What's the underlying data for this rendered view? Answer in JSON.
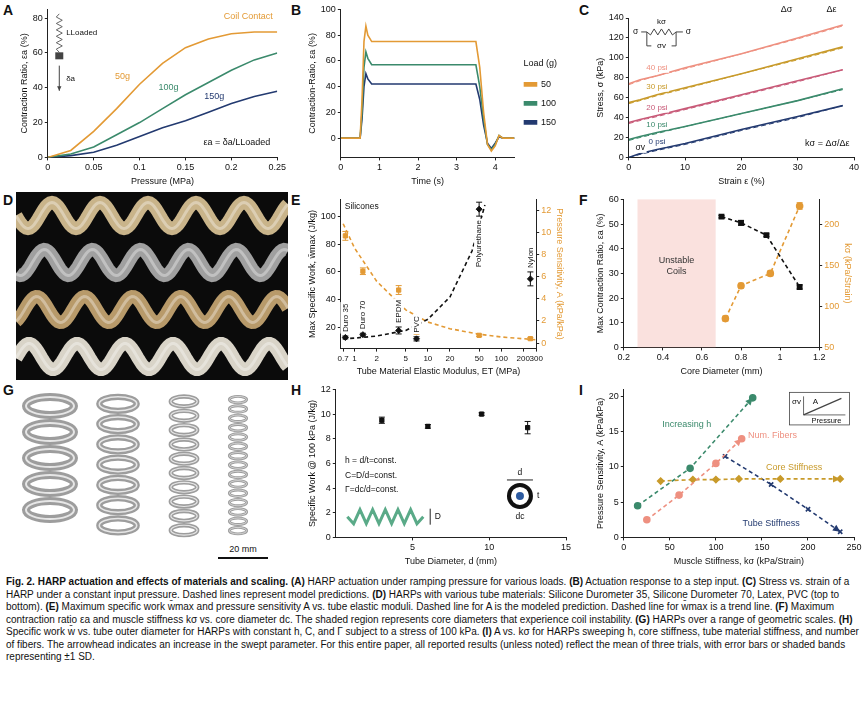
{
  "chart_data": [
    {
      "letter": "A",
      "type": "line",
      "x_label": "Pressure (MPa)",
      "y_label": "Contraction Ratio, εa (%)",
      "xlim": [
        0,
        0.25
      ],
      "xticks": [
        0,
        0.05,
        0.1,
        0.15,
        0.2,
        0.25
      ],
      "ylim": [
        0,
        85
      ],
      "yticks": [
        0,
        20,
        40,
        60,
        80
      ],
      "grid": false,
      "series": [
        {
          "name": "50g",
          "color": "#e39a35",
          "line_style": "solid",
          "marker": "none",
          "x": [
            0,
            0.025,
            0.05,
            0.075,
            0.1,
            0.125,
            0.15,
            0.175,
            0.2,
            0.225,
            0.25
          ],
          "values": [
            0,
            4,
            15,
            28,
            42,
            54,
            63,
            68,
            71,
            72,
            72
          ]
        },
        {
          "name": "100g",
          "color": "#3b8a6c",
          "line_style": "solid",
          "marker": "none",
          "x": [
            0,
            0.025,
            0.05,
            0.075,
            0.1,
            0.125,
            0.15,
            0.175,
            0.2,
            0.225,
            0.25
          ],
          "values": [
            0,
            2,
            6,
            13,
            20,
            28,
            36,
            43,
            50,
            56,
            60
          ]
        },
        {
          "name": "150g",
          "color": "#233a70",
          "line_style": "solid",
          "marker": "none",
          "x": [
            0,
            0.025,
            0.05,
            0.075,
            0.1,
            0.125,
            0.15,
            0.175,
            0.2,
            0.225,
            0.25
          ],
          "values": [
            0,
            1,
            3,
            7,
            12,
            17,
            21,
            26,
            31,
            35,
            38
          ]
        }
      ],
      "annotations": [
        "Coil Contact",
        "εa = δa/LLoaded"
      ],
      "inset_labels": [
        "LLoaded",
        "δa"
      ]
    },
    {
      "letter": "B",
      "type": "line",
      "x_label": "Time (s)",
      "y_label": "Contraction-Ratio, εa (%)",
      "xlim": [
        0,
        4.5
      ],
      "xticks": [
        0,
        1,
        2,
        3,
        4
      ],
      "ylim": [
        -15,
        100
      ],
      "yticks": [
        0,
        20,
        40,
        60,
        80,
        100
      ],
      "grid": false,
      "legend": "right",
      "legend_title": "Load (g)",
      "series": [
        {
          "name": "50",
          "color": "#e39a35",
          "line_style": "solid",
          "marker": "none",
          "x": [
            0,
            0.5,
            0.55,
            0.6,
            0.65,
            0.7,
            0.8,
            1,
            1.5,
            2,
            2.5,
            3,
            3.5,
            3.6,
            3.7,
            3.8,
            3.9,
            4,
            4.1,
            4.2,
            4.5
          ],
          "values": [
            0,
            0,
            30,
            75,
            87,
            80,
            75,
            75,
            75,
            75,
            75,
            75,
            75,
            55,
            20,
            -5,
            -10,
            -6,
            2,
            0,
            0
          ]
        },
        {
          "name": "100",
          "color": "#3b8a6c",
          "line_style": "solid",
          "marker": "none",
          "x": [
            0,
            0.5,
            0.55,
            0.6,
            0.65,
            0.7,
            0.8,
            1,
            1.5,
            2,
            2.5,
            3,
            3.5,
            3.6,
            3.7,
            3.8,
            3.9,
            4,
            4.1,
            4.2,
            4.5
          ],
          "values": [
            0,
            0,
            20,
            55,
            67,
            62,
            57,
            57,
            57,
            57,
            57,
            57,
            57,
            40,
            15,
            -5,
            -9,
            -5,
            2,
            0,
            0
          ]
        },
        {
          "name": "150",
          "color": "#233a70",
          "line_style": "solid",
          "marker": "none",
          "x": [
            0,
            0.5,
            0.55,
            0.6,
            0.65,
            0.7,
            0.8,
            1,
            1.5,
            2,
            2.5,
            3,
            3.5,
            3.6,
            3.7,
            3.8,
            3.9,
            4,
            4.1,
            4.2,
            4.5
          ],
          "values": [
            0,
            0,
            15,
            40,
            50,
            46,
            42,
            42,
            42,
            42,
            42,
            42,
            42,
            30,
            10,
            -4,
            -8,
            -4,
            1,
            0,
            0
          ]
        }
      ]
    },
    {
      "letter": "C",
      "type": "line",
      "x_label": "Strain ε (%)",
      "y_label": "Stress, σ (kPa)",
      "xlim": [
        0,
        40
      ],
      "xticks": [
        0,
        10,
        20,
        30,
        40
      ],
      "ylim": [
        0,
        140
      ],
      "yticks": [
        0,
        20,
        40,
        60,
        80,
        100,
        120,
        140
      ],
      "grid": false,
      "series": [
        {
          "name": "0 psi",
          "color": "#233a70",
          "line_style": "solid",
          "marker": "none",
          "x": [
            0,
            2,
            5,
            10,
            20,
            30,
            38
          ],
          "values": [
            0,
            4,
            8,
            14,
            28,
            41,
            52
          ],
          "model": [
            0,
            3,
            7,
            13,
            27,
            40,
            52
          ]
        },
        {
          "name": "10 psi",
          "color": "#3b8a6c",
          "line_style": "solid",
          "marker": "none",
          "x": [
            0,
            2,
            5,
            10,
            20,
            30,
            38
          ],
          "values": [
            18,
            21,
            25,
            31,
            44,
            57,
            69
          ],
          "model": [
            17,
            20,
            24,
            31,
            44,
            57,
            68
          ]
        },
        {
          "name": "20 psi",
          "color": "#c85a78",
          "line_style": "solid",
          "marker": "none",
          "x": [
            0,
            2,
            5,
            10,
            20,
            30,
            38
          ],
          "values": [
            35,
            38,
            42,
            49,
            63,
            77,
            88
          ],
          "model": [
            34,
            37,
            41,
            48,
            62,
            76,
            88
          ]
        },
        {
          "name": "30 psi",
          "color": "#c89a2a",
          "line_style": "solid",
          "marker": "none",
          "x": [
            0,
            2,
            5,
            10,
            20,
            30,
            38
          ],
          "values": [
            55,
            58,
            63,
            70,
            84,
            99,
            111
          ],
          "model": [
            54,
            57,
            62,
            69,
            84,
            98,
            110
          ]
        },
        {
          "name": "40 psi",
          "color": "#ee9080",
          "line_style": "solid",
          "marker": "none",
          "x": [
            0,
            2,
            5,
            10,
            20,
            30,
            38
          ],
          "values": [
            74,
            78,
            82,
            90,
            104,
            120,
            133
          ],
          "model": [
            73,
            77,
            82,
            89,
            104,
            119,
            132
          ]
        }
      ],
      "annotations": [
        "σv",
        "Δσ",
        "Δε",
        "kσ = Δσ/Δε"
      ],
      "inset_labels": [
        "σ",
        "kσ",
        "σv",
        "σ"
      ]
    },
    {
      "letter": "E",
      "type": "scatter",
      "log": "x",
      "x_label": "Tube Material Elastic Modulus, ET (MPa)",
      "y_label": "Max Specific Work, w̄max (J/kg)",
      "y2_label": "Pressure Sensitivity, A (kPa/kPa)",
      "xlim": [
        0.65,
        300
      ],
      "xticks": [
        0.7,
        1,
        2,
        5,
        10,
        20,
        50,
        100,
        200,
        300
      ],
      "ylim": [
        5,
        112
      ],
      "yticks": [
        20,
        40,
        60,
        80,
        100
      ],
      "y2lim": [
        -0.5,
        13
      ],
      "y2ticks": [
        0,
        2,
        4,
        6,
        8,
        10,
        12
      ],
      "grid": false,
      "series": [
        {
          "color": "#111111",
          "marker": "diamond",
          "line_style": "none",
          "x": [
            0.75,
            1.3,
            4,
            7,
            50,
            250
          ],
          "values": [
            13,
            15,
            18,
            12,
            105,
            55
          ],
          "error": [
            1,
            1,
            2.5,
            1.5,
            5,
            5
          ],
          "point_labels": [
            "Duro 35",
            "Duro 70",
            "EPDM",
            "PVC",
            "Polyurethane",
            "Nylon"
          ]
        },
        {
          "color": "#111111",
          "marker": "none",
          "line_style": "dashed",
          "x": [
            0.7,
            1,
            2,
            5,
            10,
            20,
            40,
            60
          ],
          "values": [
            12,
            12.5,
            14,
            18,
            26,
            42,
            75,
            108
          ]
        },
        {
          "color": "#e39a35",
          "marker": "square",
          "line_style": "none",
          "axis": "y2",
          "x": [
            0.75,
            1.3,
            4,
            7,
            50,
            250
          ],
          "values": [
            9.7,
            6.5,
            4.8,
            1.0,
            0.7,
            0.4
          ],
          "error": [
            0.4,
            0.3,
            0.4,
            0.2,
            0.1,
            0.1
          ]
        },
        {
          "color": "#e39a35",
          "marker": "none",
          "line_style": "dashed",
          "axis": "y2",
          "x": [
            0.7,
            1,
            2,
            5,
            10,
            20,
            50,
            100,
            300
          ],
          "values": [
            10.8,
            8.6,
            5.6,
            3,
            1.9,
            1.3,
            0.8,
            0.55,
            0.3
          ]
        }
      ],
      "annotations": [
        "Silicones"
      ]
    },
    {
      "letter": "F",
      "type": "line",
      "x_label": "Core Diameter (mm)",
      "y_label": "Max Contraction Ratio, εa (%)",
      "y2_label": "kσ (kPa/Strain)",
      "xlim": [
        0.2,
        1.2
      ],
      "xticks": [
        0.2,
        0.4,
        0.6,
        0.8,
        1,
        1.2
      ],
      "ylim": [
        0,
        60
      ],
      "yticks": [
        0,
        10,
        20,
        30,
        40,
        50,
        60
      ],
      "y2lim": [
        50,
        230
      ],
      "y2ticks": [
        50,
        100,
        150,
        200
      ],
      "grid": false,
      "shaded_region": {
        "range": [
          0.27,
          0.67
        ],
        "label": "Unstable Coils"
      },
      "series": [
        {
          "color": "#111111",
          "marker": "square",
          "line_style": "dashed",
          "x": [
            0.7,
            0.8,
            0.93,
            1.1
          ],
          "values": [
            53,
            50.5,
            45.5,
            24.5
          ],
          "error": [
            0.5,
            1,
            0.5,
            0.8
          ]
        },
        {
          "color": "#e39a35",
          "marker": "circle",
          "line_style": "dashed",
          "axis": "y2",
          "x": [
            0.72,
            0.8,
            0.95,
            1.1
          ],
          "values": [
            85,
            125,
            140,
            222
          ],
          "error": [
            3,
            3,
            3,
            4
          ]
        }
      ]
    },
    {
      "letter": "H",
      "type": "scatter",
      "x_label": "Tube Diameter, d (mm)",
      "y_label": "Specific Work @ 100 kPa (J/kg)",
      "xlim": [
        0,
        15
      ],
      "xticks": [
        5,
        10,
        15
      ],
      "ylim": [
        0,
        12
      ],
      "yticks": [
        0,
        2,
        4,
        6,
        8,
        10,
        12
      ],
      "grid": false,
      "series": [
        {
          "color": "#111111",
          "marker": "square",
          "line_style": "none",
          "x": [
            3,
            6,
            9.5,
            12.5
          ],
          "values": [
            9.5,
            9.0,
            10.0,
            8.9
          ],
          "error": [
            0.25,
            0.15,
            0.1,
            0.5
          ]
        }
      ],
      "annotations": [
        "h = d/t=const.",
        "C=D/d=const.",
        "Γ=dc/d=const."
      ],
      "inset_labels": [
        "D",
        "d",
        "t",
        "dc"
      ]
    },
    {
      "letter": "I",
      "type": "line",
      "x_label": "Muscle Stiffness, kσ (kPa/Strain)",
      "y_label": "Pressure Sensitivity, A (kPa/kPa)",
      "xlim": [
        0,
        250
      ],
      "xticks": [
        0,
        50,
        100,
        150,
        200,
        250
      ],
      "ylim": [
        0,
        21
      ],
      "yticks": [
        0,
        5,
        10,
        15,
        20
      ],
      "grid": false,
      "series": [
        {
          "name": "Increasing h",
          "color": "#3b8a6c",
          "marker": "circle",
          "line_style": "dashed",
          "x": [
            15,
            72,
            140
          ],
          "values": [
            4.5,
            9.8,
            19.8
          ]
        },
        {
          "name": "Num. Fibers",
          "color": "#ee9080",
          "marker": "circle",
          "line_style": "dashed",
          "x": [
            25,
            60,
            100,
            128
          ],
          "values": [
            2.5,
            6,
            10.5,
            14
          ]
        },
        {
          "name": "Core Stiffness",
          "color": "#c89a2a",
          "marker": "diamond",
          "line_style": "dashed",
          "x": [
            40,
            75,
            100,
            125,
            170,
            235
          ],
          "values": [
            8,
            8.2,
            8.2,
            8.3,
            8.3,
            8.3
          ]
        },
        {
          "name": "Tube Stiffness",
          "color": "#233a70",
          "marker": "cross",
          "line_style": "dashed",
          "x": [
            110,
            160,
            200,
            235
          ],
          "values": [
            11.5,
            7.5,
            4,
            0.8
          ]
        }
      ],
      "inset_labels": [
        "σv",
        "A",
        "Pressure"
      ]
    }
  ],
  "photos": [
    {
      "letter": "D"
    },
    {
      "letter": "G",
      "scale_bar": "20 mm"
    }
  ],
  "caption": {
    "label": "Fig. 2.",
    "title": "HARP actuation and effects of materials and scaling.",
    "text": "(A) HARP actuation under ramping pressure for various loads. (B) Actuation response to a step input. (C) Stress vs. strain of a HARP under a constant input pressure. Dashed lines represent model predictions. (D) HARPs with various tube materials: Silicone Durometer 35, Silicone Durometer 70, Latex, PVC (top to bottom). (E) Maximum specific work w̄max and pressure sensitivity A vs. tube elastic moduli. Dashed line for A is the modeled prediction. Dashed line for w̄max is a trend line. (F) Maximum contraction ratio εa and muscle stiffness kσ vs. core diameter dc. The shaded region represents core diameters that experience coil instability. (G) HARPs over a range of geometric scales. (H) Specific work w̄ vs. tube outer diameter for HARPs with constant h, C, and Γ subject to a stress of 100 kPa. (I) A vs. kσ for HARPs sweeping h, core stiffness, tube material stiffness, and number of fibers. The arrowhead indicates an increase in the swept parameter. For this entire paper, all reported results (unless noted) reflect the mean of three trials, with error bars or shaded bands representing ±1 SD."
  }
}
